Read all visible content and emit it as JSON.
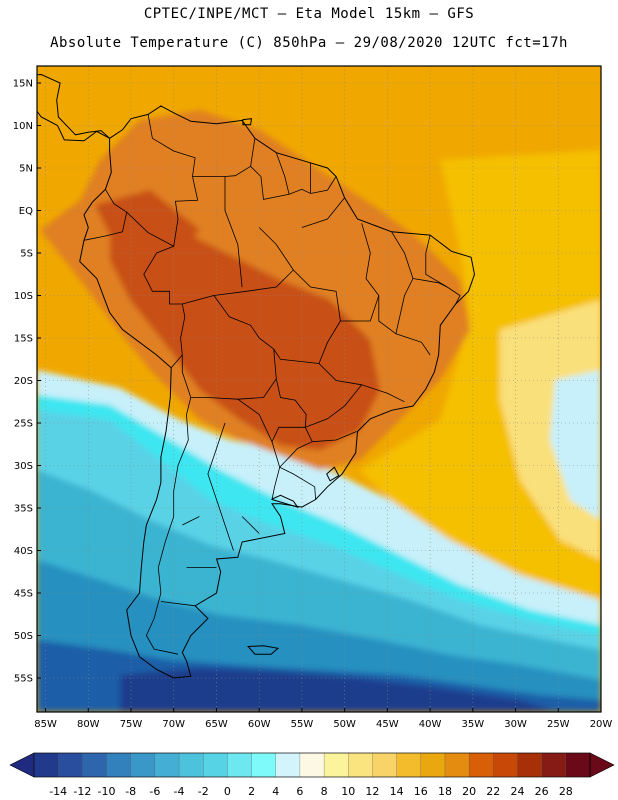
{
  "header": {
    "line1": "CPTEC/INPE/MCT –  Eta Model 15km – GFS",
    "line2": "Absolute Temperature (C) 850hPa – 29/08/2020 12UTC fct=17h"
  },
  "map": {
    "lon_range": [
      -86,
      -20
    ],
    "lat_range": [
      -59,
      17
    ],
    "lat_ticks": [
      "15N",
      "10N",
      "5N",
      "EQ",
      "5S",
      "10S",
      "15S",
      "20S",
      "25S",
      "30S",
      "35S",
      "40S",
      "45S",
      "50S",
      "55S"
    ],
    "lat_values": [
      15,
      10,
      5,
      0,
      -5,
      -10,
      -15,
      -20,
      -25,
      -30,
      -35,
      -40,
      -45,
      -50,
      -55
    ],
    "lon_ticks": [
      "85W",
      "80W",
      "75W",
      "70W",
      "65W",
      "60W",
      "55W",
      "50W",
      "45W",
      "40W",
      "35W",
      "30W",
      "25W",
      "20W"
    ],
    "lon_values": [
      -85,
      -80,
      -75,
      -70,
      -65,
      -60,
      -55,
      -50,
      -45,
      -40,
      -35,
      -30,
      -25,
      -20
    ],
    "grid": "dotted",
    "field_colors": {
      "ocean_north": "#f0a800",
      "ocean_mid": "#f5c000",
      "warm_tongue": "#fae07a",
      "land_warm": "#e08020",
      "land_hot": "#c85018",
      "cool_1": "#c8f0fa",
      "cool_2": "#5ad2e6",
      "cool_3": "#3ab4d2",
      "cool_4": "#2890c0",
      "cool_5": "#1f5ea8",
      "cool_6": "#1e3c8c",
      "cyan_band": "#3ce6f0"
    }
  },
  "colorbar": {
    "labels": [
      "-14",
      "-12",
      "-10",
      "-8",
      "-6",
      "-4",
      "-2",
      "0",
      "2",
      "4",
      "6",
      "8",
      "10",
      "12",
      "14",
      "16",
      "18",
      "20",
      "22",
      "24",
      "26",
      "28"
    ],
    "under_color": "#202a80",
    "over_color": "#6a0a18",
    "colors": [
      "#223a8c",
      "#2a4e9e",
      "#2e66ae",
      "#3280bc",
      "#3a98c8",
      "#44aed4",
      "#4cc2dc",
      "#56d4e6",
      "#6ee8f0",
      "#7efafa",
      "#d2f4fa",
      "#fcf8e4",
      "#fcf49c",
      "#fae480",
      "#f8d468",
      "#f2bc2c",
      "#eaa810",
      "#e48c10",
      "#d85e08",
      "#c84808",
      "#a83008",
      "#861a14",
      "#6a0a18"
    ]
  }
}
